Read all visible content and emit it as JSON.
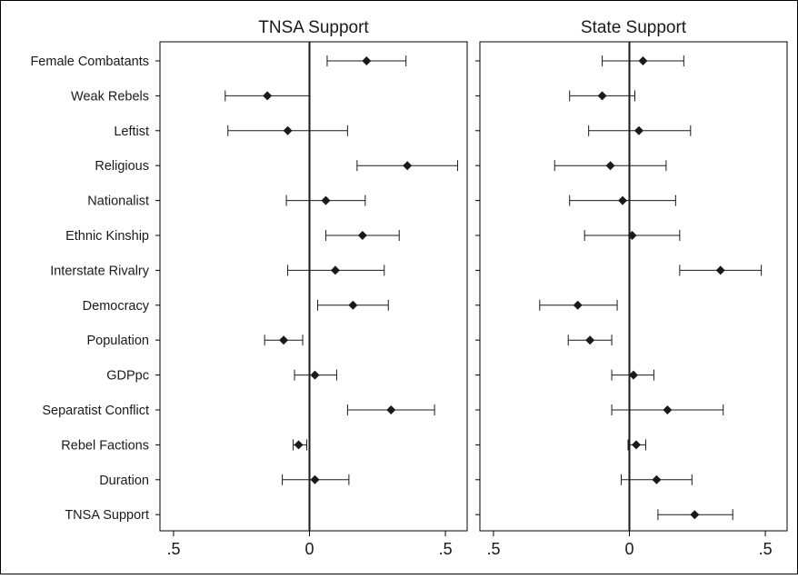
{
  "chart_data": {
    "type": "scatter",
    "subtype": "coefficient plot with confidence intervals",
    "categories": [
      "Female Combatants",
      "Weak Rebels",
      "Leftist",
      "Religious",
      "Nationalist",
      "Ethnic Kinship",
      "Interstate Rivalry",
      "Democracy",
      "Population",
      "GDPpc",
      "Separatist Conflict",
      "Rebel Factions",
      "Duration",
      "TNSA Support"
    ],
    "xticks": [
      -0.5,
      0,
      0.5
    ],
    "xtick_labels": [
      ".5",
      "0",
      ".5"
    ],
    "xlim": [
      -0.55,
      0.58
    ],
    "reference_line": 0,
    "colors": {
      "marker": "#1a1a1a",
      "line": "#1a1a1a",
      "frame": "#000000"
    },
    "panels": [
      {
        "title": "TNSA Support",
        "points": [
          {
            "label": "Female Combatants",
            "estimate": 0.21,
            "lower": 0.065,
            "upper": 0.355
          },
          {
            "label": "Weak Rebels",
            "estimate": -0.155,
            "lower": -0.31,
            "upper": 0.0
          },
          {
            "label": "Leftist",
            "estimate": -0.08,
            "lower": -0.3,
            "upper": 0.14
          },
          {
            "label": "Religious",
            "estimate": 0.36,
            "lower": 0.175,
            "upper": 0.545
          },
          {
            "label": "Nationalist",
            "estimate": 0.06,
            "lower": -0.085,
            "upper": 0.205
          },
          {
            "label": "Ethnic Kinship",
            "estimate": 0.195,
            "lower": 0.06,
            "upper": 0.33
          },
          {
            "label": "Interstate Rivalry",
            "estimate": 0.095,
            "lower": -0.08,
            "upper": 0.275
          },
          {
            "label": "Democracy",
            "estimate": 0.16,
            "lower": 0.03,
            "upper": 0.29
          },
          {
            "label": "Population",
            "estimate": -0.095,
            "lower": -0.165,
            "upper": -0.025
          },
          {
            "label": "GDPpc",
            "estimate": 0.02,
            "lower": -0.055,
            "upper": 0.1
          },
          {
            "label": "Separatist Conflict",
            "estimate": 0.3,
            "lower": 0.14,
            "upper": 0.46
          },
          {
            "label": "Rebel Factions",
            "estimate": -0.04,
            "lower": -0.06,
            "upper": -0.01
          },
          {
            "label": "Duration",
            "estimate": 0.02,
            "lower": -0.1,
            "upper": 0.145
          },
          {
            "label": "TNSA Support",
            "estimate": null,
            "lower": null,
            "upper": null
          }
        ]
      },
      {
        "title": "State Support",
        "points": [
          {
            "label": "Female Combatants",
            "estimate": 0.05,
            "lower": -0.1,
            "upper": 0.2
          },
          {
            "label": "Weak Rebels",
            "estimate": -0.1,
            "lower": -0.22,
            "upper": 0.02
          },
          {
            "label": "Leftist",
            "estimate": 0.035,
            "lower": -0.15,
            "upper": 0.225
          },
          {
            "label": "Religious",
            "estimate": -0.07,
            "lower": -0.275,
            "upper": 0.135
          },
          {
            "label": "Nationalist",
            "estimate": -0.025,
            "lower": -0.22,
            "upper": 0.17
          },
          {
            "label": "Ethnic Kinship",
            "estimate": 0.01,
            "lower": -0.165,
            "upper": 0.185
          },
          {
            "label": "Interstate Rivalry",
            "estimate": 0.335,
            "lower": 0.185,
            "upper": 0.485
          },
          {
            "label": "Democracy",
            "estimate": -0.19,
            "lower": -0.33,
            "upper": -0.045
          },
          {
            "label": "Population",
            "estimate": -0.145,
            "lower": -0.225,
            "upper": -0.065
          },
          {
            "label": "GDPpc",
            "estimate": 0.015,
            "lower": -0.065,
            "upper": 0.09
          },
          {
            "label": "Separatist Conflict",
            "estimate": 0.14,
            "lower": -0.065,
            "upper": 0.345
          },
          {
            "label": "Rebel Factions",
            "estimate": 0.025,
            "lower": -0.005,
            "upper": 0.06
          },
          {
            "label": "Duration",
            "estimate": 0.1,
            "lower": -0.03,
            "upper": 0.23
          },
          {
            "label": "TNSA Support",
            "estimate": 0.24,
            "lower": 0.105,
            "upper": 0.38
          }
        ]
      }
    ]
  }
}
